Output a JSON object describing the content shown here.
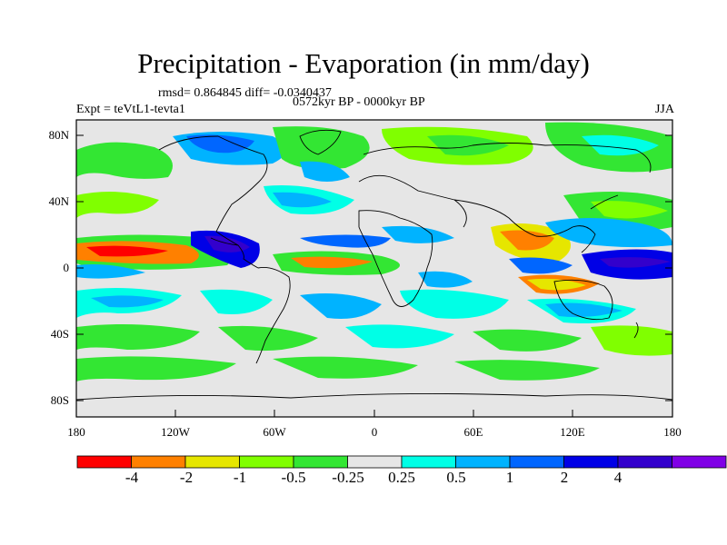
{
  "title": "Precipitation - Evaporation (in mm/day)",
  "stats_line": "rmsd= 0.864845  diff= -0.0340437",
  "period_line": "0572kyr BP - 0000kyr BP",
  "experiment_line": "Expt = teVtL1-tevta1",
  "season": "JJA",
  "axes": {
    "y_ticks": [
      "80N",
      "40N",
      "0",
      "40S",
      "80S"
    ],
    "x_ticks": [
      "180",
      "120W",
      "60W",
      "0",
      "60E",
      "120E",
      "180"
    ]
  },
  "colorbar": {
    "colors": [
      "#ff0000",
      "#ff8000",
      "#e6e600",
      "#80ff00",
      "#33e633",
      "#e6e6e6",
      "#00ffe6",
      "#00b3ff",
      "#0066ff",
      "#0000e6",
      "#3300cc",
      "#8000e6"
    ],
    "labels": [
      "-4",
      "-2",
      "-1",
      "-0.5",
      "-0.25",
      "0.25",
      "0.5",
      "1",
      "2",
      "4"
    ]
  },
  "palette": {
    "background": "#e6e6e6",
    "coast": "#000000"
  }
}
